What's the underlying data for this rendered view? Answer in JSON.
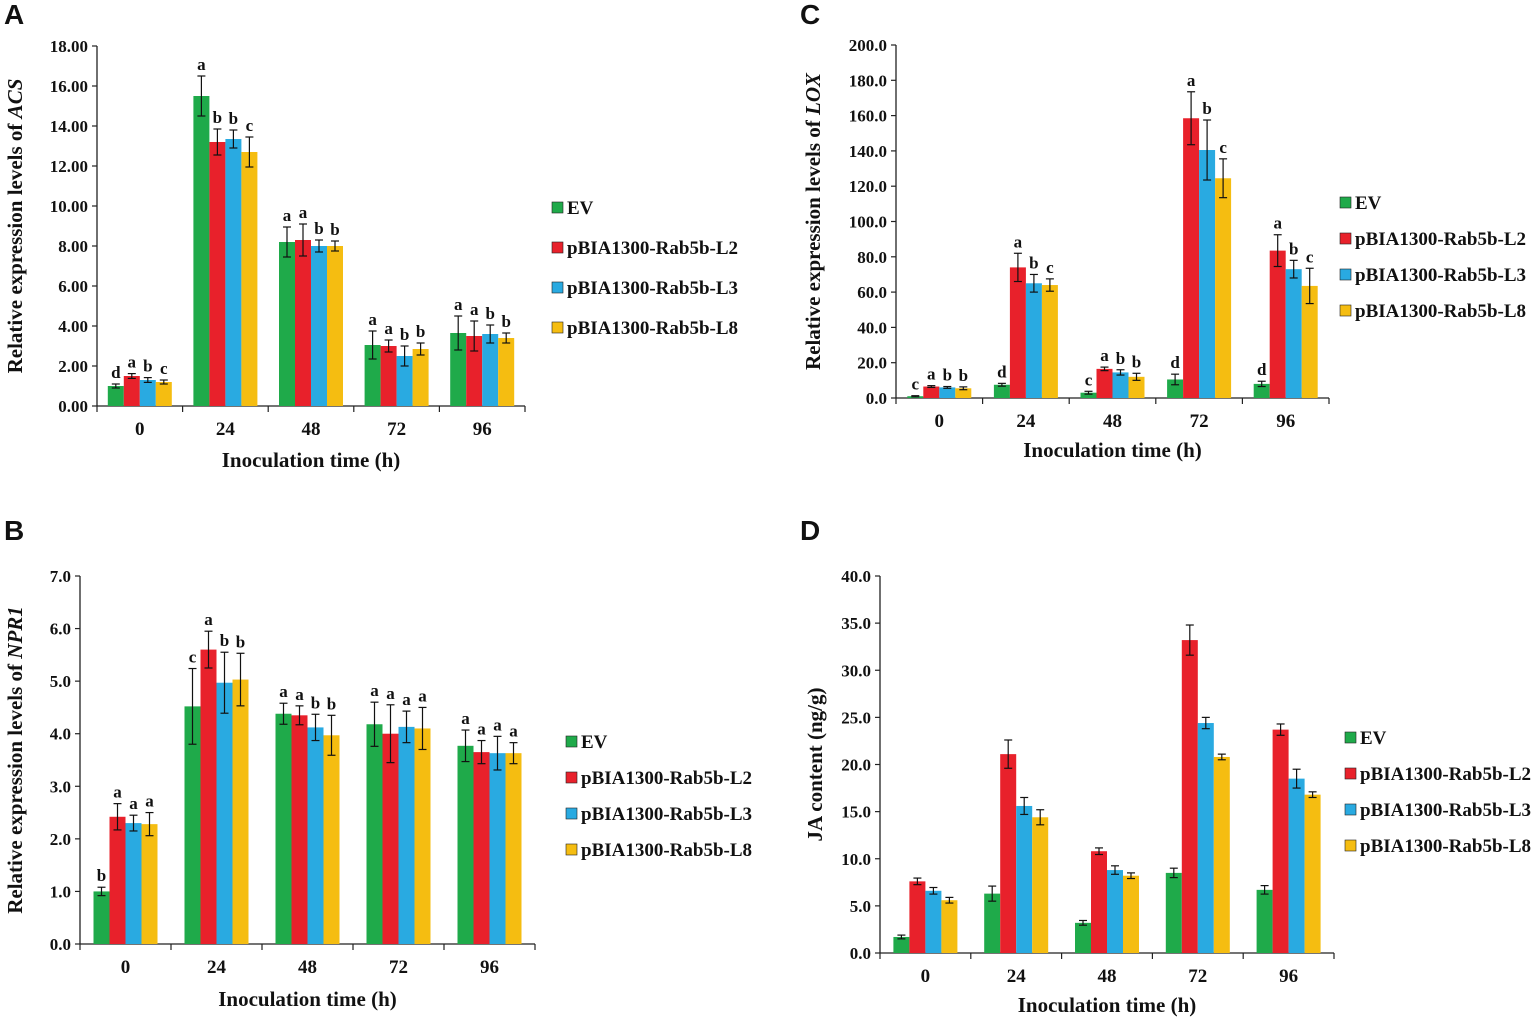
{
  "chart_data": [
    {
      "panel": "A",
      "type": "bar",
      "xlabel": "Inoculation time (h)",
      "ylabel_prefix": "Relative expression levels of ",
      "ylabel_gene": "ACS",
      "ylim": [
        0,
        18
      ],
      "yticks": [
        "0.00",
        "2.00",
        "4.00",
        "6.00",
        "8.00",
        "10.00",
        "12.00",
        "14.00",
        "16.00",
        "18.00"
      ],
      "categories": [
        "0",
        "24",
        "48",
        "72",
        "96"
      ],
      "series": [
        {
          "name": "EV",
          "color": "#1faa4a",
          "values": [
            1.0,
            15.5,
            8.2,
            3.05,
            3.65
          ],
          "errors": [
            0.1,
            1.0,
            0.75,
            0.7,
            0.85
          ],
          "labels": [
            "d",
            "a",
            "a",
            "a",
            "a"
          ]
        },
        {
          "name": "pBIA1300-Rab5b-L2",
          "color": "#e8212b",
          "values": [
            1.5,
            13.2,
            8.3,
            3.0,
            3.5
          ],
          "errors": [
            0.12,
            0.65,
            0.8,
            0.3,
            0.75
          ],
          "labels": [
            "a",
            "b",
            "a",
            "a",
            "a"
          ]
        },
        {
          "name": "pBIA1300-Rab5b-L3",
          "color": "#29aae1",
          "values": [
            1.3,
            13.35,
            8.0,
            2.5,
            3.6
          ],
          "errors": [
            0.12,
            0.45,
            0.3,
            0.5,
            0.45
          ],
          "labels": [
            "b",
            "b",
            "b",
            "b",
            "b"
          ]
        },
        {
          "name": "pBIA1300-Rab5b-L8",
          "color": "#f5bd11",
          "values": [
            1.2,
            12.7,
            8.0,
            2.85,
            3.4
          ],
          "errors": [
            0.1,
            0.75,
            0.25,
            0.3,
            0.25
          ],
          "labels": [
            "c",
            "c",
            "b",
            "b",
            "b"
          ]
        }
      ]
    },
    {
      "panel": "B",
      "type": "bar",
      "xlabel": "Inoculation time (h)",
      "ylabel_prefix": "Relative expression levels of ",
      "ylabel_gene": "NPR1",
      "ylim": [
        0,
        7
      ],
      "yticks": [
        "0.0",
        "1.0",
        "2.0",
        "3.0",
        "4.0",
        "5.0",
        "6.0",
        "7.0"
      ],
      "categories": [
        "0",
        "24",
        "48",
        "72",
        "96"
      ],
      "series": [
        {
          "name": "EV",
          "color": "#1faa4a",
          "values": [
            1.0,
            4.52,
            4.38,
            4.18,
            3.77
          ],
          "errors": [
            0.08,
            0.72,
            0.2,
            0.42,
            0.3
          ],
          "labels": [
            "b",
            "c",
            "a",
            "a",
            "a"
          ]
        },
        {
          "name": "pBIA1300-Rab5b-L2",
          "color": "#e8212b",
          "values": [
            2.42,
            5.6,
            4.35,
            4.0,
            3.65
          ],
          "errors": [
            0.25,
            0.35,
            0.18,
            0.55,
            0.22
          ],
          "labels": [
            "a",
            "a",
            "a",
            "a",
            "a"
          ]
        },
        {
          "name": "pBIA1300-Rab5b-L3",
          "color": "#29aae1",
          "values": [
            2.3,
            4.97,
            4.12,
            4.13,
            3.63
          ],
          "errors": [
            0.15,
            0.58,
            0.25,
            0.3,
            0.32
          ],
          "labels": [
            "a",
            "b",
            "b",
            "a",
            "a"
          ]
        },
        {
          "name": "pBIA1300-Rab5b-L8",
          "color": "#f5bd11",
          "values": [
            2.28,
            5.03,
            3.97,
            4.1,
            3.63
          ],
          "errors": [
            0.22,
            0.5,
            0.38,
            0.4,
            0.2
          ],
          "labels": [
            "a",
            "b",
            "b",
            "a",
            "a"
          ]
        }
      ]
    },
    {
      "panel": "C",
      "type": "bar",
      "xlabel": "Inoculation time (h)",
      "ylabel_prefix": "Relative expression levels of ",
      "ylabel_gene": "LOX",
      "ylim": [
        0,
        200
      ],
      "yticks": [
        "0.0",
        "20.0",
        "40.0",
        "60.0",
        "80.0",
        "100.0",
        "120.0",
        "140.0",
        "160.0",
        "180.0",
        "200.0"
      ],
      "categories": [
        "0",
        "24",
        "48",
        "72",
        "96"
      ],
      "series": [
        {
          "name": "EV",
          "color": "#1faa4a",
          "values": [
            1.0,
            7.5,
            3.0,
            10.5,
            8.0
          ],
          "errors": [
            0.3,
            0.8,
            0.8,
            3.0,
            1.5
          ],
          "labels": [
            "c",
            "d",
            "c",
            "d",
            "d"
          ]
        },
        {
          "name": "pBIA1300-Rab5b-L2",
          "color": "#e8212b",
          "values": [
            6.5,
            74.0,
            16.5,
            158.5,
            83.5
          ],
          "errors": [
            0.5,
            8.0,
            1.0,
            15.0,
            9.0
          ],
          "labels": [
            "a",
            "a",
            "a",
            "a",
            "a"
          ]
        },
        {
          "name": "pBIA1300-Rab5b-L3",
          "color": "#29aae1",
          "values": [
            6.0,
            65.0,
            14.5,
            140.5,
            73.0
          ],
          "errors": [
            0.5,
            5.0,
            1.5,
            17.0,
            5.0
          ],
          "labels": [
            "b",
            "b",
            "b",
            "b",
            "b"
          ]
        },
        {
          "name": "pBIA1300-Rab5b-L8",
          "color": "#f5bd11",
          "values": [
            5.5,
            64.0,
            12.0,
            124.5,
            63.5
          ],
          "errors": [
            0.8,
            3.5,
            2.0,
            11.0,
            10.0
          ],
          "labels": [
            "b",
            "c",
            "b",
            "c",
            "c"
          ]
        }
      ]
    },
    {
      "panel": "D",
      "type": "bar",
      "xlabel": "Inoculation time (h)",
      "ylabel_prefix": "JA content  (ng/g)",
      "ylabel_gene": "",
      "ylim": [
        0,
        40
      ],
      "yticks": [
        "0.0",
        "5.0",
        "10.0",
        "15.0",
        "20.0",
        "25.0",
        "30.0",
        "35.0",
        "40.0"
      ],
      "categories": [
        "0",
        "24",
        "48",
        "72",
        "96"
      ],
      "series": [
        {
          "name": "EV",
          "color": "#1faa4a",
          "values": [
            1.7,
            6.3,
            3.2,
            8.5,
            6.7
          ],
          "errors": [
            0.2,
            0.8,
            0.25,
            0.5,
            0.45
          ],
          "labels": [
            "",
            "",
            "",
            "",
            ""
          ]
        },
        {
          "name": "pBIA1300-Rab5b-L2",
          "color": "#e8212b",
          "values": [
            7.6,
            21.1,
            10.8,
            33.2,
            23.7
          ],
          "errors": [
            0.35,
            1.5,
            0.35,
            1.6,
            0.6
          ],
          "labels": [
            "",
            "",
            "",
            "",
            ""
          ]
        },
        {
          "name": "pBIA1300-Rab5b-L3",
          "color": "#29aae1",
          "values": [
            6.6,
            15.6,
            8.8,
            24.4,
            18.5
          ],
          "errors": [
            0.35,
            0.9,
            0.45,
            0.6,
            1.0
          ],
          "labels": [
            "",
            "",
            "",
            "",
            ""
          ]
        },
        {
          "name": "pBIA1300-Rab5b-L8",
          "color": "#f5bd11",
          "values": [
            5.6,
            14.4,
            8.2,
            20.8,
            16.8
          ],
          "errors": [
            0.3,
            0.8,
            0.3,
            0.3,
            0.3
          ],
          "labels": [
            "",
            "",
            "",
            "",
            ""
          ]
        }
      ]
    }
  ]
}
